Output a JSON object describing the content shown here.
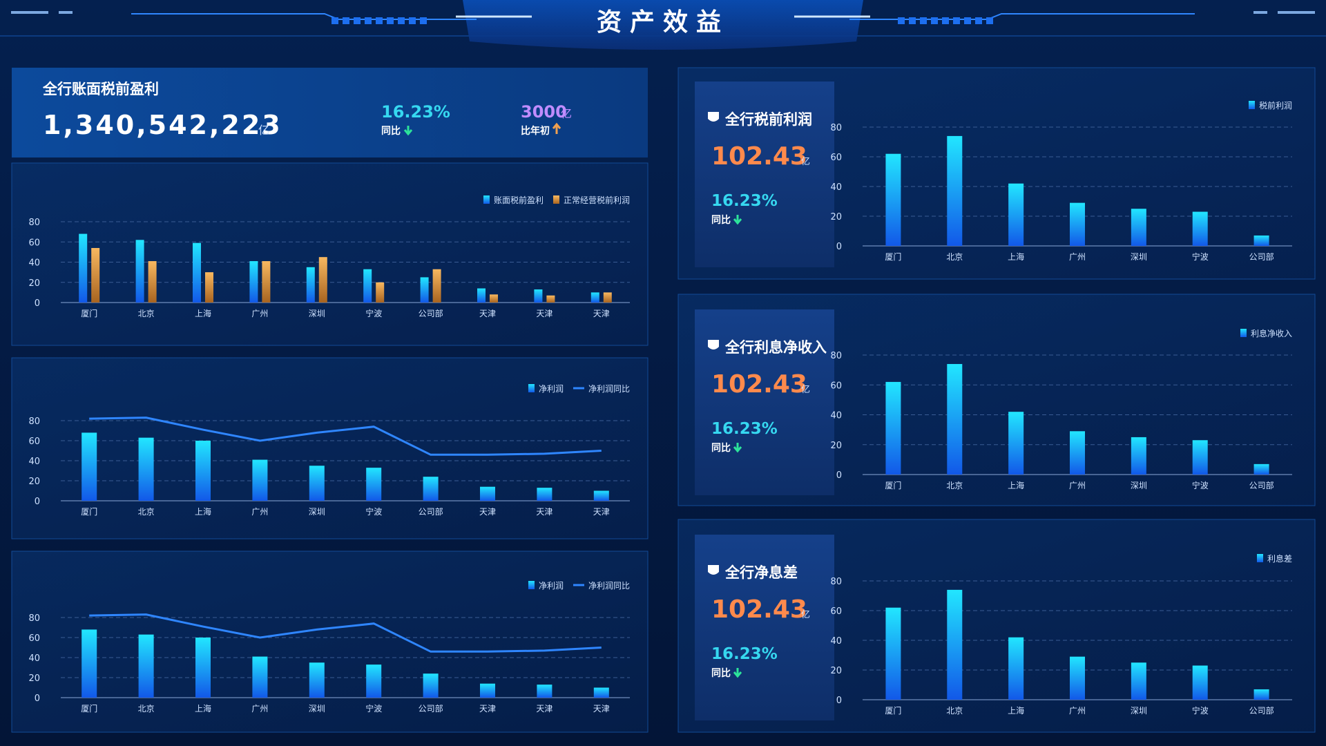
{
  "header": {
    "title": "资产效益"
  },
  "kpi": {
    "title": "全行账面税前盈利",
    "value": "1,340,542,223",
    "unit": "亿",
    "change": "16.23%",
    "change_label": "同比",
    "delta": "3000",
    "delta_unit": "亿",
    "delta_label": "比年初"
  },
  "cards": [
    {
      "title": "全行税前利润",
      "value": "102.43",
      "unit": "亿",
      "change": "16.23%",
      "change_label": "同比"
    },
    {
      "title": "全行利息净收入",
      "value": "102.43",
      "unit": "亿",
      "change": "16.23%",
      "change_label": "同比"
    },
    {
      "title": "全行净息差",
      "value": "102.43",
      "unit": "亿",
      "change": "16.23%",
      "change_label": "同比"
    }
  ],
  "chart_data": [
    {
      "type": "bar",
      "categories": [
        "厦门",
        "北京",
        "上海",
        "广州",
        "深圳",
        "宁波",
        "公司部",
        "天津",
        "天津",
        "天津"
      ],
      "series": [
        {
          "name": "账面税前盈利",
          "type": "bar",
          "color": "#22d8ff",
          "values": [
            68,
            62,
            59,
            41,
            35,
            33,
            25,
            14,
            13,
            10
          ]
        },
        {
          "name": "正常经营税前利润",
          "type": "bar",
          "color": "#f0a050",
          "values": [
            54,
            41,
            30,
            41,
            45,
            20,
            33,
            8,
            7,
            10
          ]
        }
      ],
      "ylim": [
        0,
        80
      ],
      "yticks": [
        0,
        20,
        40,
        60,
        80
      ],
      "grid": true
    },
    {
      "type": "combo",
      "categories": [
        "厦门",
        "北京",
        "上海",
        "广州",
        "深圳",
        "宁波",
        "公司部",
        "天津",
        "天津",
        "天津"
      ],
      "series": [
        {
          "name": "净利润",
          "type": "bar",
          "color": "#22d8ff",
          "values": [
            68,
            63,
            60,
            41,
            35,
            33,
            24,
            14,
            13,
            10
          ]
        },
        {
          "name": "净利润同比",
          "type": "line",
          "color": "#2f86ff",
          "values": [
            82,
            83,
            71,
            60,
            68,
            74,
            46,
            46,
            47,
            50
          ]
        }
      ],
      "ylim": [
        0,
        80
      ],
      "yticks": [
        0,
        20,
        40,
        60,
        80
      ],
      "grid": true
    },
    {
      "type": "combo",
      "categories": [
        "厦门",
        "北京",
        "上海",
        "广州",
        "深圳",
        "宁波",
        "公司部",
        "天津",
        "天津",
        "天津"
      ],
      "series": [
        {
          "name": "净利润",
          "type": "bar",
          "color": "#22d8ff",
          "values": [
            68,
            63,
            60,
            41,
            35,
            33,
            24,
            14,
            13,
            10
          ]
        },
        {
          "name": "净利润同比",
          "type": "line",
          "color": "#2f86ff",
          "values": [
            82,
            83,
            71,
            60,
            68,
            74,
            46,
            46,
            47,
            50
          ]
        }
      ],
      "ylim": [
        0,
        80
      ],
      "yticks": [
        0,
        20,
        40,
        60,
        80
      ],
      "grid": true
    },
    {
      "type": "bar",
      "categories": [
        "厦门",
        "北京",
        "上海",
        "广州",
        "深圳",
        "宁波",
        "公司部"
      ],
      "series": [
        {
          "name": "税前利润",
          "type": "bar",
          "color": "#22d8ff",
          "values": [
            62,
            74,
            42,
            29,
            25,
            23,
            7
          ]
        }
      ],
      "ylim": [
        0,
        80
      ],
      "yticks": [
        0,
        20,
        40,
        60,
        80
      ],
      "grid": true
    },
    {
      "type": "bar",
      "categories": [
        "厦门",
        "北京",
        "上海",
        "广州",
        "深圳",
        "宁波",
        "公司部"
      ],
      "series": [
        {
          "name": "利息净收入",
          "type": "bar",
          "color": "#22d8ff",
          "values": [
            62,
            74,
            42,
            29,
            25,
            23,
            7
          ]
        }
      ],
      "ylim": [
        0,
        80
      ],
      "yticks": [
        0,
        20,
        40,
        60,
        80
      ],
      "grid": true
    },
    {
      "type": "bar",
      "categories": [
        "厦门",
        "北京",
        "上海",
        "广州",
        "深圳",
        "宁波",
        "公司部"
      ],
      "series": [
        {
          "name": "利息差",
          "type": "bar",
          "color": "#22d8ff",
          "values": [
            62,
            74,
            42,
            29,
            25,
            23,
            7
          ]
        }
      ],
      "ylim": [
        0,
        80
      ],
      "yticks": [
        0,
        20,
        40,
        60,
        80
      ],
      "grid": true
    }
  ]
}
